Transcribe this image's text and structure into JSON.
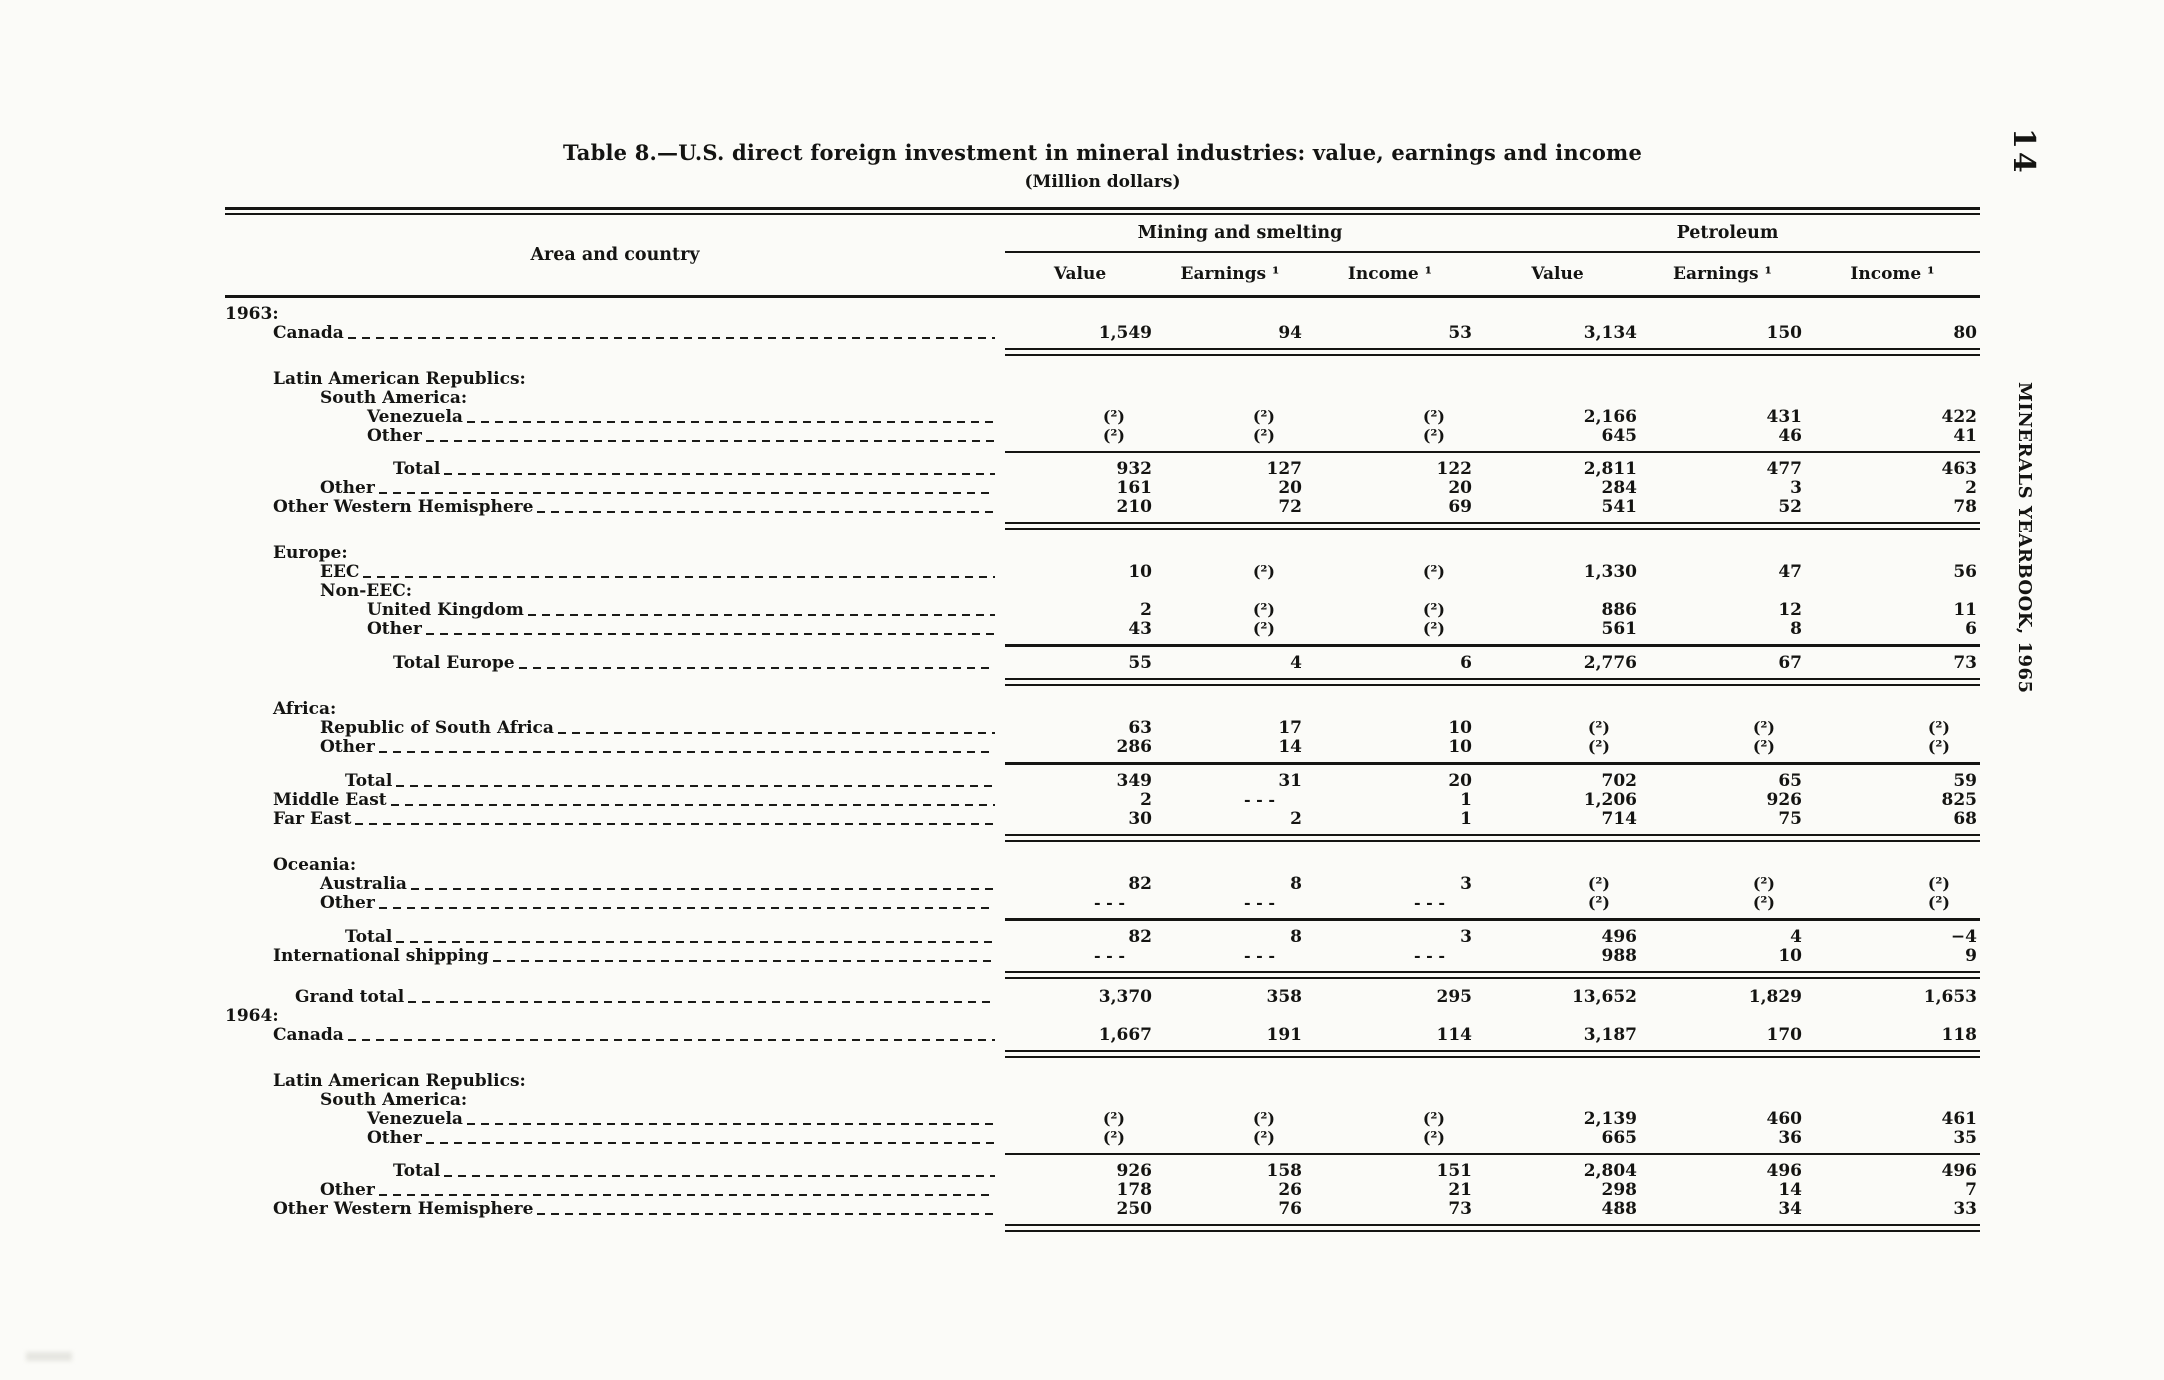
{
  "page": {
    "number": "14",
    "running_title": "MINERALS YEARBOOK, 1965"
  },
  "table": {
    "title": "Table 8.—U.S. direct foreign investment in mineral industries:  value, earnings and income",
    "subtitle": "(Million dollars)",
    "stub_header": "Area and country",
    "groups": [
      {
        "label": "Mining and smelting"
      },
      {
        "label": "Petroleum"
      }
    ],
    "columns": [
      "Value",
      "Earnings ¹",
      "Income ¹",
      "Value",
      "Earnings ¹",
      "Income ¹"
    ],
    "rows": [
      {
        "label": "1963:",
        "ind": 0,
        "type": "year"
      },
      {
        "label": "Canada",
        "ind": 1,
        "type": "data",
        "cells": [
          "1,549",
          "94",
          "53",
          "3,134",
          "150",
          "80"
        ]
      },
      {
        "rule": "double"
      },
      {
        "label": "Latin American Republics:",
        "ind": 1,
        "type": "head",
        "gap": 13
      },
      {
        "label": "South America:",
        "ind": 2,
        "type": "head"
      },
      {
        "label": "Venezuela",
        "ind": 3,
        "type": "data",
        "cells": [
          "(²)",
          "(²)",
          "(²)",
          "2,166",
          "431",
          "422"
        ]
      },
      {
        "label": "Other",
        "ind": 3,
        "type": "data",
        "cells": [
          "(²)",
          "(²)",
          "(²)",
          "645",
          "46",
          "41"
        ]
      },
      {
        "rule": "single"
      },
      {
        "label": "Total",
        "ind": 4,
        "type": "data",
        "gap": 6,
        "cells": [
          "932",
          "127",
          "122",
          "2,811",
          "477",
          "463"
        ]
      },
      {
        "label": "Other",
        "ind": 2,
        "type": "data",
        "cells": [
          "161",
          "20",
          "20",
          "284",
          "3",
          "2"
        ]
      },
      {
        "label": "Other Western Hemisphere",
        "ind": 1,
        "type": "data",
        "cells": [
          "210",
          "72",
          "69",
          "541",
          "52",
          "78"
        ]
      },
      {
        "rule": "double"
      },
      {
        "label": "Europe:",
        "ind": 1,
        "type": "head",
        "gap": 13
      },
      {
        "label": "EEC",
        "ind": 2,
        "type": "data",
        "cells": [
          "10",
          "(²)",
          "(²)",
          "1,330",
          "47",
          "56"
        ]
      },
      {
        "label": "Non-EEC:",
        "ind": 2,
        "type": "head"
      },
      {
        "label": "United Kingdom",
        "ind": 3,
        "type": "data",
        "cells": [
          "2",
          "(²)",
          "(²)",
          "886",
          "12",
          "11"
        ]
      },
      {
        "label": "Other",
        "ind": 3,
        "type": "data",
        "cells": [
          "43",
          "(²)",
          "(²)",
          "561",
          "8",
          "6"
        ]
      },
      {
        "rule": "thick"
      },
      {
        "label": "Total Europe",
        "ind": 4,
        "type": "data",
        "gap": 6,
        "cells": [
          "55",
          "4",
          "6",
          "2,776",
          "67",
          "73"
        ]
      },
      {
        "rule": "double"
      },
      {
        "label": "Africa:",
        "ind": 1,
        "type": "head",
        "gap": 13
      },
      {
        "label": "Republic of South Africa",
        "ind": 2,
        "type": "data",
        "cells": [
          "63",
          "17",
          "10",
          "(²)",
          "(²)",
          "(²)"
        ]
      },
      {
        "label": "Other",
        "ind": 2,
        "type": "data",
        "cells": [
          "286",
          "14",
          "10",
          "(²)",
          "(²)",
          "(²)"
        ]
      },
      {
        "rule": "thick"
      },
      {
        "label": "Total",
        "ind": 5,
        "type": "data",
        "gap": 6,
        "cells": [
          "349",
          "31",
          "20",
          "702",
          "65",
          "59"
        ]
      },
      {
        "label": "Middle East",
        "ind": 1,
        "type": "data",
        "cells": [
          "2",
          "- - -",
          "1",
          "1,206",
          "926",
          "825"
        ]
      },
      {
        "label": "Far East",
        "ind": 1,
        "type": "data",
        "cells": [
          "30",
          "2",
          "1",
          "714",
          "75",
          "68"
        ]
      },
      {
        "rule": "double"
      },
      {
        "label": "Oceania:",
        "ind": 1,
        "type": "head",
        "gap": 13
      },
      {
        "label": "Australia",
        "ind": 2,
        "type": "data",
        "cells": [
          "82",
          "8",
          "3",
          "(²)",
          "(²)",
          "(²)"
        ]
      },
      {
        "label": "Other",
        "ind": 2,
        "type": "data",
        "cells": [
          "- - -",
          "- - -",
          "- - -",
          "(²)",
          "(²)",
          "(²)"
        ]
      },
      {
        "rule": "thick"
      },
      {
        "label": "Total",
        "ind": 5,
        "type": "data",
        "gap": 6,
        "cells": [
          "82",
          "8",
          "3",
          "496",
          "4",
          "−4"
        ]
      },
      {
        "label": "International shipping",
        "ind": 1,
        "type": "data",
        "cells": [
          "- - -",
          "- - -",
          "- - -",
          "988",
          "10",
          "9"
        ]
      },
      {
        "rule": "double"
      },
      {
        "label": "Grand total",
        "ind": 6,
        "type": "data",
        "gap": 8,
        "cells": [
          "3,370",
          "358",
          "295",
          "13,652",
          "1,829",
          "1,653"
        ]
      },
      {
        "label": "1964:",
        "ind": 0,
        "type": "year"
      },
      {
        "label": "Canada",
        "ind": 1,
        "type": "data",
        "cells": [
          "1,667",
          "191",
          "114",
          "3,187",
          "170",
          "118"
        ]
      },
      {
        "rule": "double"
      },
      {
        "label": "Latin American Republics:",
        "ind": 1,
        "type": "head",
        "gap": 13
      },
      {
        "label": "South America:",
        "ind": 2,
        "type": "head"
      },
      {
        "label": "Venezuela",
        "ind": 3,
        "type": "data",
        "cells": [
          "(²)",
          "(²)",
          "(²)",
          "2,139",
          "460",
          "461"
        ]
      },
      {
        "label": "Other",
        "ind": 3,
        "type": "data",
        "cells": [
          "(²)",
          "(²)",
          "(²)",
          "665",
          "36",
          "35"
        ]
      },
      {
        "rule": "single"
      },
      {
        "label": "Total",
        "ind": 4,
        "type": "data",
        "gap": 6,
        "cells": [
          "926",
          "158",
          "151",
          "2,804",
          "496",
          "496"
        ]
      },
      {
        "label": "Other",
        "ind": 2,
        "type": "data",
        "cells": [
          "178",
          "26",
          "21",
          "298",
          "14",
          "7"
        ]
      },
      {
        "label": "Other Western Hemisphere",
        "ind": 1,
        "type": "data",
        "cells": [
          "250",
          "76",
          "73",
          "488",
          "34",
          "33"
        ]
      },
      {
        "rule": "double"
      }
    ]
  }
}
